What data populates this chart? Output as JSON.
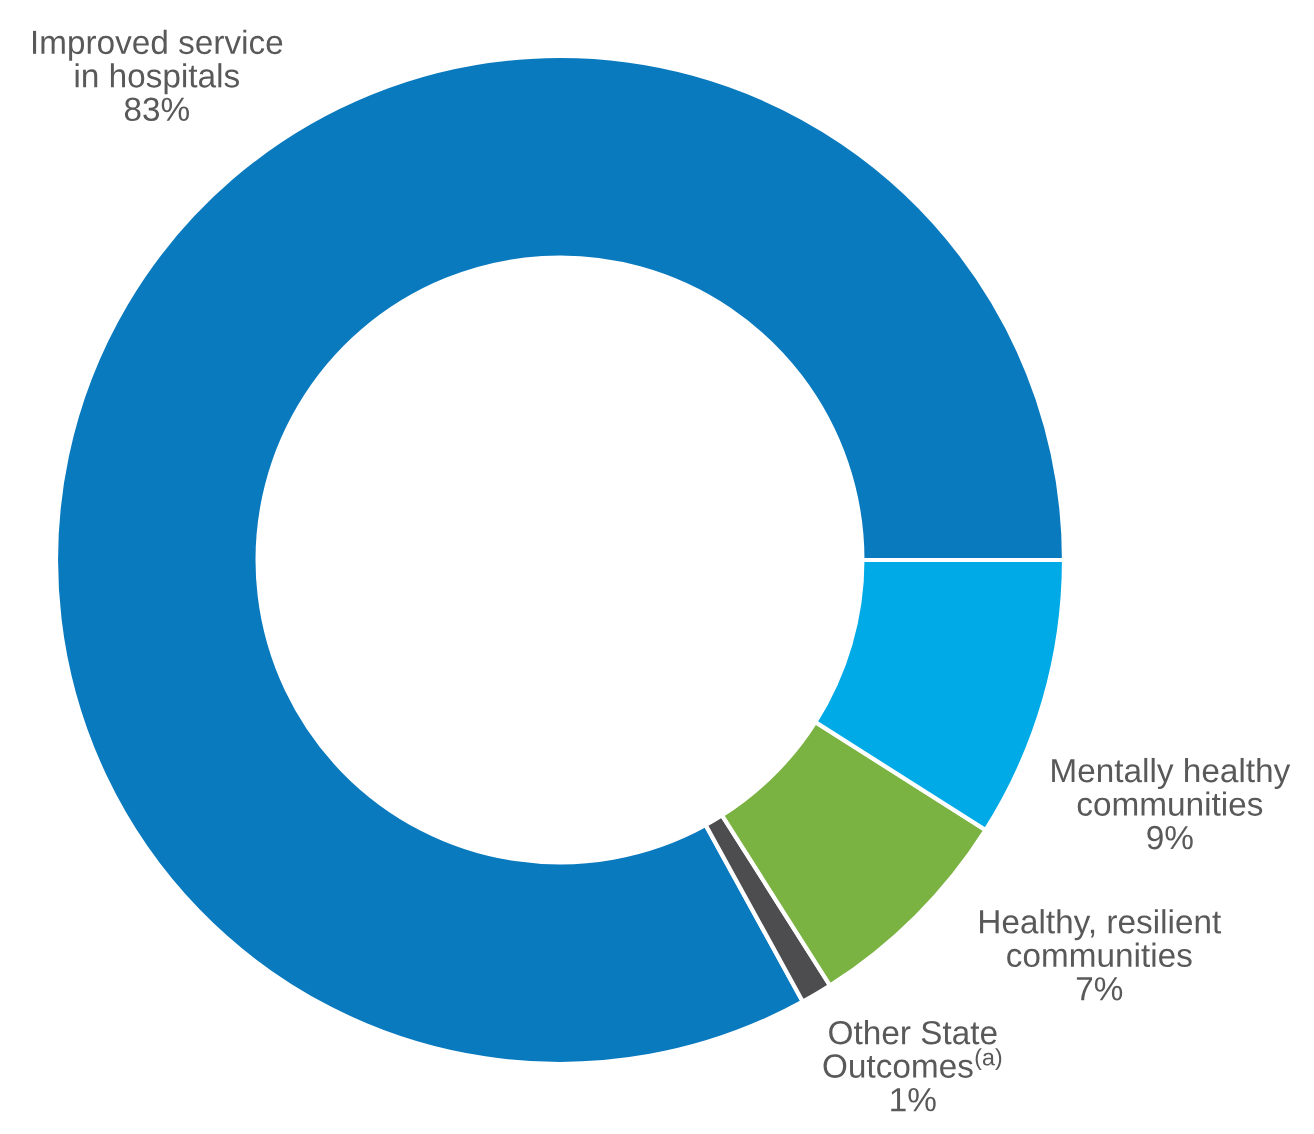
{
  "chart_data": {
    "type": "donut",
    "categories": [
      "Improved service\nin hospitals",
      "Other State\nOutcomes$^{(a)}$",
      "Healthy, resilient\ncommunities",
      "Mentally healthy\ncommunities"
    ],
    "values": [
      83,
      1,
      7,
      9
    ],
    "value_labels": [
      "83%",
      "1%",
      "7%",
      "9%"
    ],
    "colors": [
      "#0a7abf",
      "#4d4d4f",
      "#7ab342",
      "#00aae6"
    ]
  }
}
